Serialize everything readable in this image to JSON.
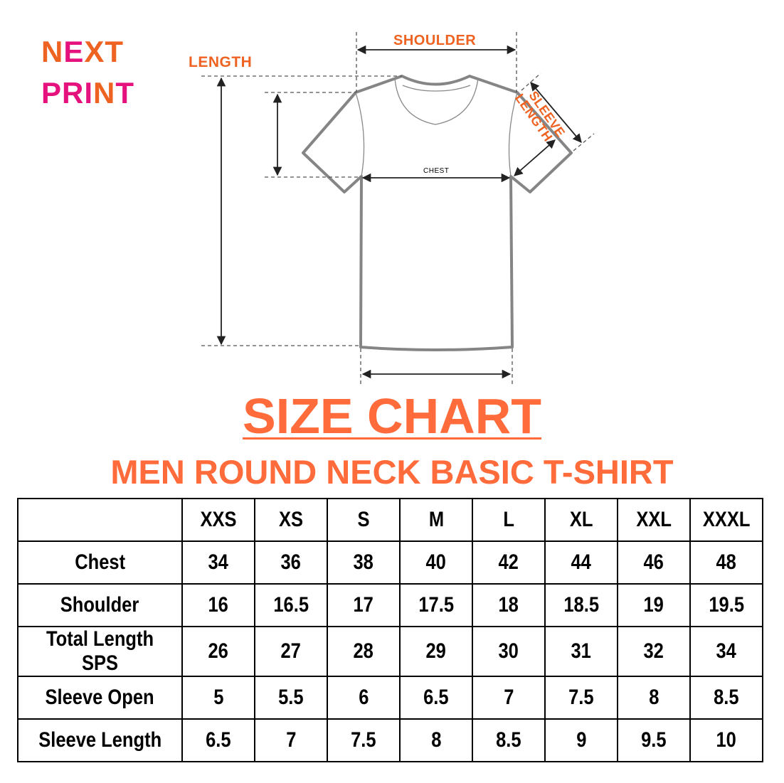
{
  "logo": {
    "line1": "NEXT",
    "line2": "PRINT",
    "colors": {
      "orange": "#ee6222",
      "pink": "#e5127d"
    }
  },
  "diagram": {
    "length_label": "LENGTH",
    "shoulder_label": "SHOULDER",
    "sleeve_label_line1": "SLEEVE",
    "sleeve_label_line2": "LENGTH",
    "chest_label": "CHEST"
  },
  "title": "SIZE CHART",
  "subtitle": "MEN ROUND NECK BASIC T-SHIRT",
  "accent_color": "#ff6b3a",
  "table": {
    "sizes": [
      "XXS",
      "XS",
      "S",
      "M",
      "L",
      "XL",
      "XXL",
      "XXXL"
    ],
    "rows": [
      {
        "label": "Chest",
        "values": [
          "34",
          "36",
          "38",
          "40",
          "42",
          "44",
          "46",
          "48"
        ]
      },
      {
        "label": "Shoulder",
        "values": [
          "16",
          "16.5",
          "17",
          "17.5",
          "18",
          "18.5",
          "19",
          "19.5"
        ]
      },
      {
        "label": "Total Length SPS",
        "values": [
          "26",
          "27",
          "28",
          "29",
          "30",
          "31",
          "32",
          "34"
        ]
      },
      {
        "label": "Sleeve Open",
        "values": [
          "5",
          "5.5",
          "6",
          "6.5",
          "7",
          "7.5",
          "8",
          "8.5"
        ]
      },
      {
        "label": "Sleeve Length",
        "values": [
          "6.5",
          "7",
          "7.5",
          "8",
          "8.5",
          "9",
          "9.5",
          "10"
        ]
      }
    ]
  }
}
